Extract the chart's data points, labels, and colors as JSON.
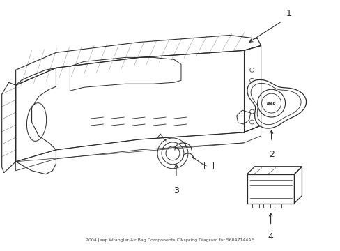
{
  "title": "2004 Jeep Wrangler Air Bag Components Clkspring Diagram for 56047144AE",
  "background_color": "#ffffff",
  "line_color": "#2a2a2a",
  "fig_width": 4.89,
  "fig_height": 3.6,
  "dpi": 100
}
